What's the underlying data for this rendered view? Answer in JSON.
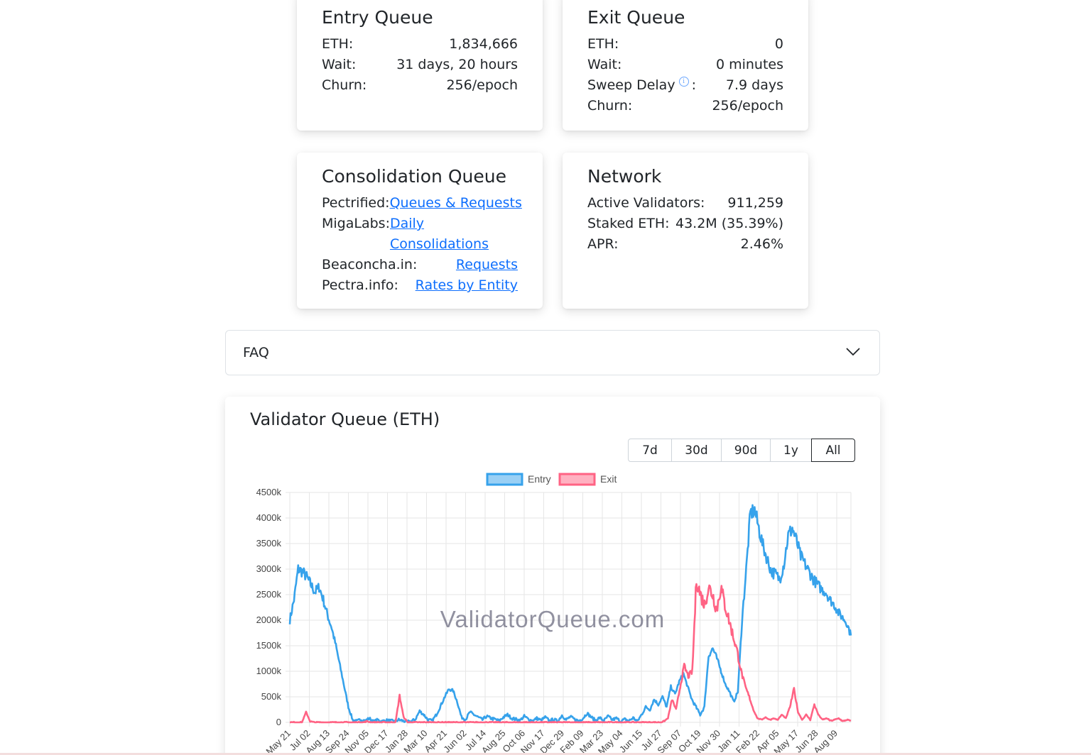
{
  "entry_queue": {
    "title": "Entry Queue",
    "rows": [
      {
        "label": "ETH:",
        "value": "1,834,666"
      },
      {
        "label": "Wait:",
        "value": "31 days, 20 hours"
      },
      {
        "label": "Churn:",
        "value": "256/epoch"
      }
    ]
  },
  "exit_queue": {
    "title": "Exit Queue",
    "rows": [
      {
        "label": "ETH:",
        "value": "0"
      },
      {
        "label": "Wait:",
        "value": "0 minutes"
      },
      {
        "label": "Sweep Delay",
        "label_suffix": ":",
        "value": "7.9 days",
        "info_icon": "info-icon",
        "info_glyph": "i"
      },
      {
        "label": "Churn:",
        "value": "256/epoch"
      }
    ]
  },
  "consolidation_queue": {
    "title": "Consolidation Queue",
    "rows": [
      {
        "label": "Pectrified:",
        "link": "Queues & Requests"
      },
      {
        "label": "MigaLabs:",
        "link_line1": "Daily",
        "link_line2": "Consolidations"
      },
      {
        "label": "Beaconcha.in:",
        "link": "Requests"
      },
      {
        "label": "Pectra.info:",
        "link": "Rates by Entity"
      }
    ]
  },
  "network": {
    "title": "Network",
    "rows": [
      {
        "label": "Active Validators:",
        "value": "911,259"
      },
      {
        "label": "Staked ETH:",
        "value": "43.2M (35.39%)"
      },
      {
        "label": "APR:",
        "value": "2.46%"
      }
    ]
  },
  "faq": {
    "label": "FAQ",
    "icon": "chevron-down-icon"
  },
  "chart_section": {
    "title": "Validator Queue (ETH)",
    "ranges": [
      "7d",
      "30d",
      "90d",
      "1y",
      "All"
    ],
    "active_range": "All",
    "watermark": "ValidatorQueue.com"
  },
  "chart_data": {
    "type": "line",
    "title": "",
    "legend_position": "top",
    "grid": true,
    "ylim": [
      0,
      4500000
    ],
    "y_ticks": [
      "0",
      "500k",
      "1000k",
      "1500k",
      "2000k",
      "2500k",
      "3000k",
      "3500k",
      "4000k",
      "4500k"
    ],
    "x_tick_labels": [
      "May 21",
      "Jul 02",
      "Aug 13",
      "Sep 24",
      "Nov 05",
      "Dec 17",
      "Jan 28",
      "Mar 10",
      "Apr 21",
      "Jun 02",
      "Jul 14",
      "Aug 25",
      "Oct 06",
      "Nov 17",
      "Dec 29",
      "Feb 09",
      "Mar 23",
      "May 04",
      "Jun 15",
      "Jul 27",
      "Sep 07",
      "Oct 19",
      "Nov 30",
      "Jan 11",
      "Feb 22",
      "Apr 05",
      "May 17",
      "Jun 28",
      "Aug 09"
    ],
    "series": [
      {
        "name": "Entry",
        "color": "#36a2eb",
        "fill": "#9ad0f5",
        "values": [
          2000000,
          2400000,
          3000000,
          2950000,
          2850000,
          2700000,
          2550000,
          2650000,
          2400000,
          2100000,
          1850000,
          1500000,
          1100000,
          700000,
          300000,
          50000,
          20000,
          60000,
          30000,
          80000,
          10000,
          50000,
          20000,
          40000,
          30000,
          20000,
          50000,
          30000,
          10000,
          20000,
          60000,
          220000,
          150000,
          50000,
          30000,
          150000,
          320000,
          500000,
          650000,
          620000,
          400000,
          100000,
          60000,
          200000,
          150000,
          100000,
          50000,
          120000,
          80000,
          60000,
          30000,
          100000,
          150000,
          80000,
          60000,
          40000,
          120000,
          60000,
          30000,
          80000,
          40000,
          100000,
          30000,
          60000,
          20000,
          140000,
          50000,
          110000,
          60000,
          30000,
          80000,
          180000,
          100000,
          40000,
          90000,
          30000,
          120000,
          50000,
          80000,
          20000,
          60000,
          30000,
          90000,
          20000,
          150000,
          300000,
          250000,
          450000,
          350000,
          500000,
          300000,
          700000,
          550000,
          800000,
          950000,
          700000,
          450000,
          300000,
          150000,
          300000,
          1300000,
          1450000,
          1250000,
          1000000,
          750000,
          600000,
          400000,
          600000,
          2000000,
          3000000,
          4100000,
          4150000,
          3800000,
          3450000,
          3200000,
          2950000,
          2900000,
          2800000,
          3100000,
          3650000,
          3800000,
          3550000,
          3250000,
          3100000,
          2950000,
          2800000,
          2700000,
          2600000,
          2550000,
          2400000,
          2300000,
          2150000,
          2050000,
          1950000,
          1700000
        ]
      },
      {
        "name": "Exit",
        "color": "#ff6384",
        "fill": "#ffb1c1",
        "values": [
          0,
          0,
          0,
          0,
          200000,
          20000,
          0,
          0,
          0,
          0,
          0,
          0,
          0,
          0,
          0,
          0,
          0,
          0,
          0,
          20000,
          0,
          0,
          0,
          0,
          0,
          0,
          0,
          520000,
          100000,
          0,
          0,
          0,
          0,
          0,
          0,
          0,
          0,
          0,
          0,
          0,
          0,
          0,
          0,
          0,
          0,
          0,
          0,
          0,
          0,
          0,
          0,
          0,
          0,
          0,
          0,
          0,
          0,
          0,
          0,
          0,
          0,
          0,
          0,
          0,
          0,
          0,
          0,
          0,
          0,
          0,
          0,
          0,
          0,
          0,
          0,
          0,
          0,
          0,
          0,
          0,
          0,
          0,
          0,
          0,
          0,
          0,
          0,
          0,
          0,
          0,
          0,
          0,
          20000,
          80000,
          450000,
          250000,
          700000,
          1100000,
          900000,
          1000000,
          2800000,
          2500000,
          2300000,
          2650000,
          2500000,
          2200000,
          2650000,
          2300000,
          2000000,
          1700000,
          1400000,
          1000000,
          700000,
          500000,
          250000,
          80000,
          50000,
          100000,
          50000,
          80000,
          50000,
          150000,
          80000,
          300000,
          650000,
          200000,
          50000,
          150000,
          50000,
          350000,
          150000,
          50000,
          80000,
          30000,
          50000,
          80000,
          20000,
          50000,
          30000
        ]
      }
    ]
  }
}
